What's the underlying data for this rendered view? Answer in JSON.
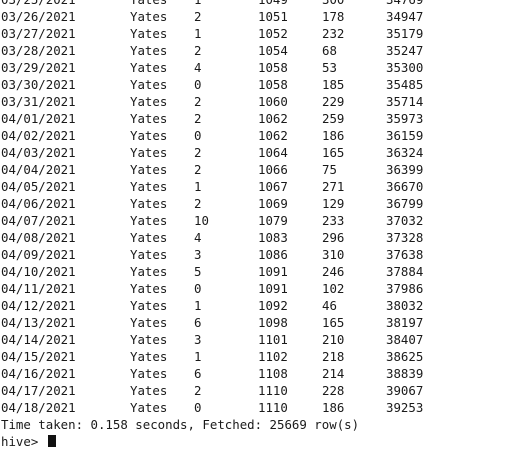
{
  "terminal": {
    "rows": [
      [
        "03/25/2021",
        "Yates",
        "1",
        "1049",
        "300",
        "34769"
      ],
      [
        "03/26/2021",
        "Yates",
        "2",
        "1051",
        "178",
        "34947"
      ],
      [
        "03/27/2021",
        "Yates",
        "1",
        "1052",
        "232",
        "35179"
      ],
      [
        "03/28/2021",
        "Yates",
        "2",
        "1054",
        "68",
        "35247"
      ],
      [
        "03/29/2021",
        "Yates",
        "4",
        "1058",
        "53",
        "35300"
      ],
      [
        "03/30/2021",
        "Yates",
        "0",
        "1058",
        "185",
        "35485"
      ],
      [
        "03/31/2021",
        "Yates",
        "2",
        "1060",
        "229",
        "35714"
      ],
      [
        "04/01/2021",
        "Yates",
        "2",
        "1062",
        "259",
        "35973"
      ],
      [
        "04/02/2021",
        "Yates",
        "0",
        "1062",
        "186",
        "36159"
      ],
      [
        "04/03/2021",
        "Yates",
        "2",
        "1064",
        "165",
        "36324"
      ],
      [
        "04/04/2021",
        "Yates",
        "2",
        "1066",
        "75",
        "36399"
      ],
      [
        "04/05/2021",
        "Yates",
        "1",
        "1067",
        "271",
        "36670"
      ],
      [
        "04/06/2021",
        "Yates",
        "2",
        "1069",
        "129",
        "36799"
      ],
      [
        "04/07/2021",
        "Yates",
        "10",
        "1079",
        "233",
        "37032"
      ],
      [
        "04/08/2021",
        "Yates",
        "4",
        "1083",
        "296",
        "37328"
      ],
      [
        "04/09/2021",
        "Yates",
        "3",
        "1086",
        "310",
        "37638"
      ],
      [
        "04/10/2021",
        "Yates",
        "5",
        "1091",
        "246",
        "37884"
      ],
      [
        "04/11/2021",
        "Yates",
        "0",
        "1091",
        "102",
        "37986"
      ],
      [
        "04/12/2021",
        "Yates",
        "1",
        "1092",
        "46",
        "38032"
      ],
      [
        "04/13/2021",
        "Yates",
        "6",
        "1098",
        "165",
        "38197"
      ],
      [
        "04/14/2021",
        "Yates",
        "3",
        "1101",
        "210",
        "38407"
      ],
      [
        "04/15/2021",
        "Yates",
        "1",
        "1102",
        "218",
        "38625"
      ],
      [
        "04/16/2021",
        "Yates",
        "6",
        "1108",
        "214",
        "38839"
      ],
      [
        "04/17/2021",
        "Yates",
        "2",
        "1110",
        "228",
        "39067"
      ],
      [
        "04/18/2021",
        "Yates",
        "0",
        "1110",
        "186",
        "39253"
      ]
    ],
    "status": "Time taken: 0.158 seconds, Fetched: 25669 row(s)",
    "prompt": "hive>"
  }
}
